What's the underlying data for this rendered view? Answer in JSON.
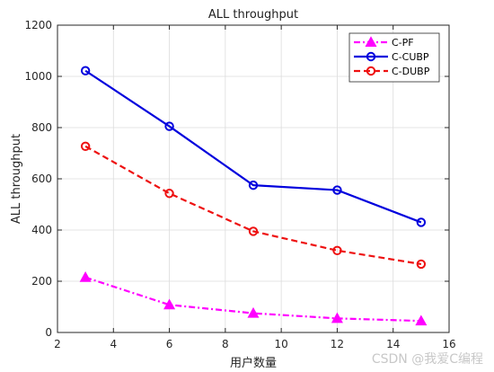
{
  "chart_data": {
    "type": "line",
    "title": "ALL throughput",
    "xlabel": "用户数量",
    "ylabel": "ALL throughput",
    "xlim": [
      2,
      16
    ],
    "ylim": [
      0,
      1200
    ],
    "xticks": [
      2,
      4,
      6,
      8,
      10,
      12,
      14,
      16
    ],
    "yticks": [
      0,
      200,
      400,
      600,
      800,
      1000,
      1200
    ],
    "grid": true,
    "legend_position": "top-right",
    "x": [
      3,
      6,
      9,
      12,
      15
    ],
    "series": [
      {
        "name": "C-PF",
        "values": [
          215,
          108,
          75,
          55,
          45
        ],
        "color": "#ff00ff",
        "line_style": "dash-dot",
        "marker": "triangle"
      },
      {
        "name": "C-CUBP",
        "values": [
          1022,
          805,
          575,
          556,
          430
        ],
        "color": "#0000dd",
        "line_style": "solid",
        "marker": "circle"
      },
      {
        "name": "C-DUBP",
        "values": [
          727,
          543,
          395,
          320,
          267
        ],
        "color": "#ee1111",
        "line_style": "dashed",
        "marker": "circle"
      }
    ]
  },
  "watermark": "CSDN @我爱C编程"
}
